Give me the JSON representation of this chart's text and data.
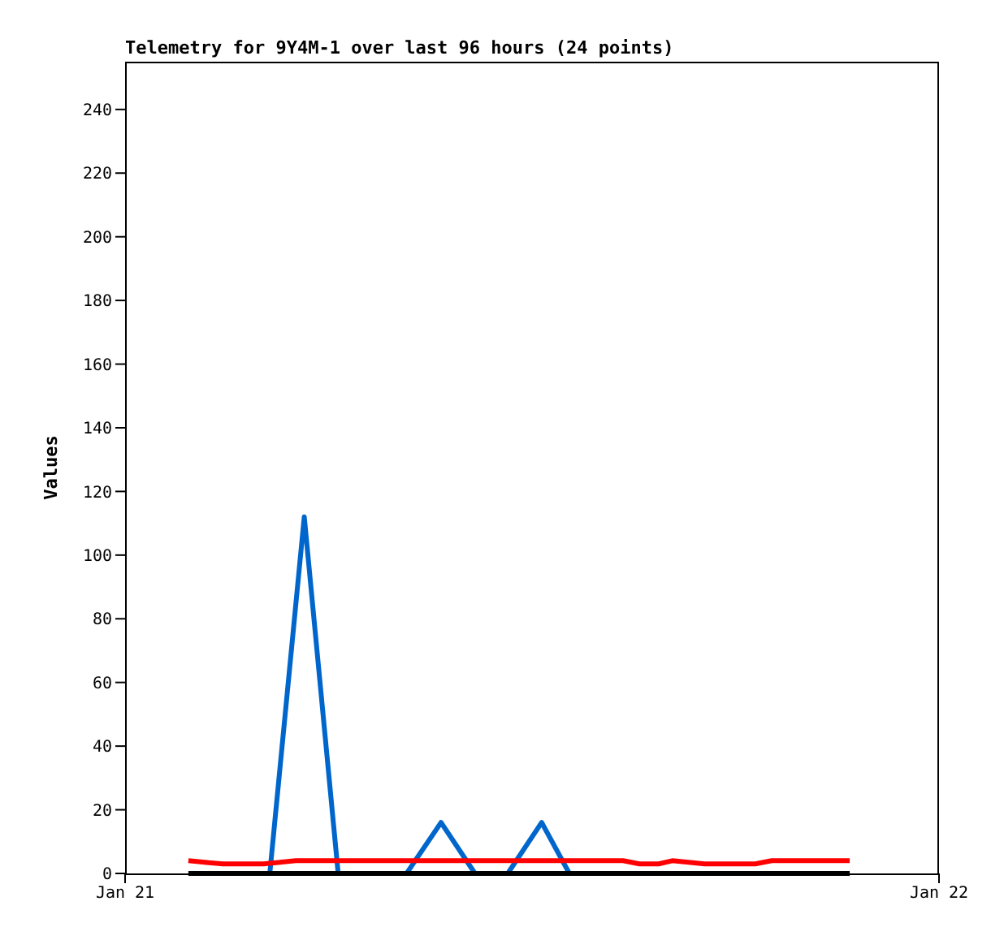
{
  "chart_data": {
    "type": "line",
    "title": "Telemetry for 9Y4M-1 over last 96 hours (24 points)",
    "ylabel": "Values",
    "xlim": [
      "--01-21",
      "--01-22"
    ],
    "xticks": [
      {
        "value": "--01-21",
        "label": "Jan 21"
      },
      {
        "value": "--01-22",
        "label": "Jan 22"
      }
    ],
    "ylim": [
      0,
      255
    ],
    "yticks": [
      0,
      20,
      40,
      60,
      80,
      100,
      120,
      140,
      160,
      180,
      200,
      220,
      240
    ],
    "marker": "none",
    "line_style": "solid",
    "series": [
      {
        "color": "#0066cc",
        "x": [
          "--01-21T04:16",
          "--01-21T05:17",
          "--01-21T06:17",
          "--01-21T08:18",
          "--01-21T09:19",
          "--01-21T10:19",
          "--01-21T11:17",
          "--01-21T12:17",
          "--01-21T13:06"
        ],
        "values": [
          0,
          112,
          0,
          0,
          16,
          0,
          0,
          16,
          0
        ]
      },
      {
        "color": "#ff0000",
        "x": [
          "--01-21T01:52",
          "--01-21T02:21",
          "--01-21T02:53",
          "--01-21T04:05",
          "--01-21T04:34",
          "--01-21T05:02",
          "--01-21T14:41",
          "--01-21T15:10",
          "--01-21T15:44",
          "--01-21T16:08",
          "--01-21T16:37",
          "--01-21T17:05",
          "--01-21T18:35",
          "--01-21T19:04",
          "--01-21T21:22"
        ],
        "values": [
          4,
          3.5,
          3,
          3,
          3.5,
          4,
          4,
          3,
          3,
          4,
          3.5,
          3,
          3,
          4,
          4
        ]
      },
      {
        "color": "#000000",
        "x": [
          "--01-21T01:52",
          "--01-21T21:22"
        ],
        "values": [
          0,
          0
        ]
      }
    ]
  }
}
